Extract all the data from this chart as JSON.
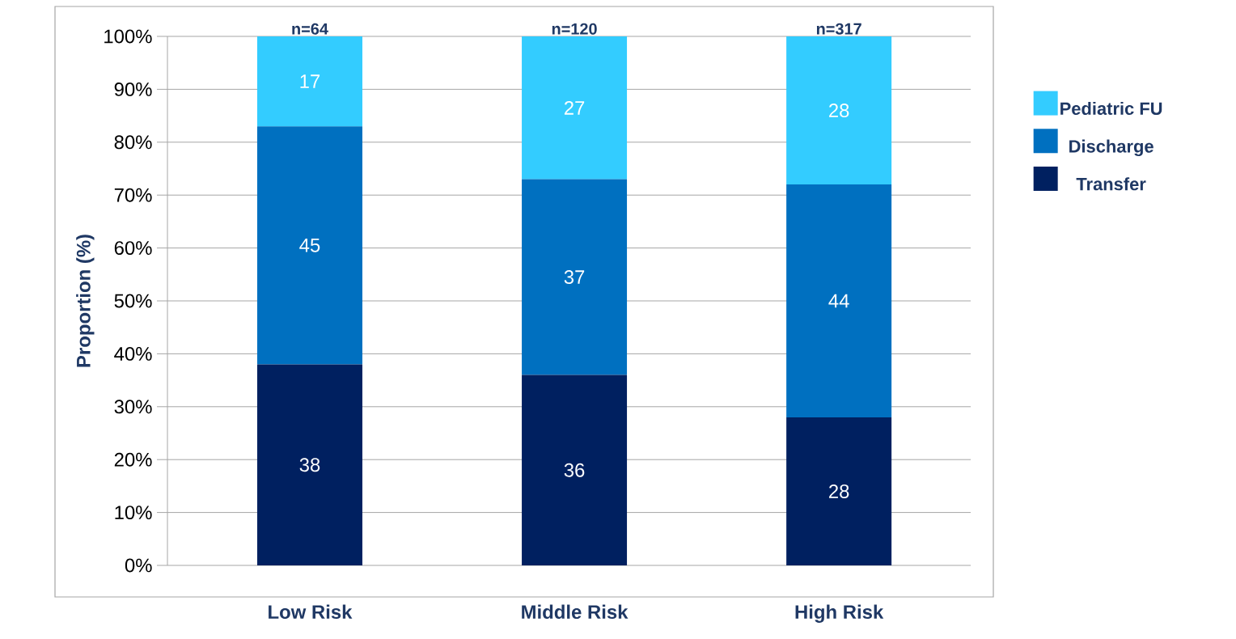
{
  "chart_data": {
    "type": "bar",
    "stacked": true,
    "ylabel": "Proportion  (%)",
    "categories": [
      "Low Risk",
      "Middle Risk",
      "High Risk"
    ],
    "series": [
      {
        "name": "Transfer",
        "color": "#002060",
        "values": [
          38,
          36,
          28
        ]
      },
      {
        "name": "Discharge",
        "color": "#0070c0",
        "values": [
          45,
          37,
          44
        ]
      },
      {
        "name": "Pediatric FU",
        "color": "#33ccff",
        "values": [
          17,
          27,
          28
        ]
      }
    ],
    "ylim": [
      0,
      100
    ],
    "yticks": [
      {
        "value": 0,
        "label": "0%"
      },
      {
        "value": 10,
        "label": "10%"
      },
      {
        "value": 20,
        "label": "20%"
      },
      {
        "value": 30,
        "label": "30%"
      },
      {
        "value": 40,
        "label": "40%"
      },
      {
        "value": 50,
        "label": "50%"
      },
      {
        "value": 60,
        "label": "60%"
      },
      {
        "value": 70,
        "label": "70%"
      },
      {
        "value": 80,
        "label": "80%"
      },
      {
        "value": 90,
        "label": "90%"
      },
      {
        "value": 100,
        "label": "100%"
      }
    ],
    "annotations": [
      "n=64",
      "n=120",
      "n=317"
    ],
    "data_labels": true,
    "grid": "y",
    "legend": "right"
  }
}
